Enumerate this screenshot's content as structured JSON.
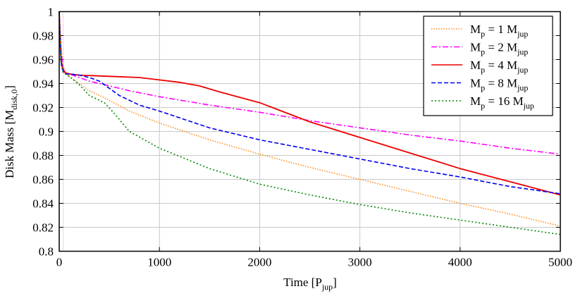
{
  "chart_data": {
    "type": "line",
    "xlabel": {
      "main": "Time [P",
      "sub": "jup",
      "end": "]"
    },
    "ylabel": {
      "main": "Disk Mass [M",
      "sub": "disk,0",
      "end": "]"
    },
    "xlim": [
      0,
      5000
    ],
    "ylim": [
      0.8,
      1.0
    ],
    "xticks": [
      0,
      1000,
      2000,
      3000,
      4000,
      5000
    ],
    "yticks": [
      0.8,
      0.82,
      0.84,
      0.86,
      0.88,
      0.9,
      0.92,
      0.94,
      0.96,
      0.98,
      1
    ],
    "ytick_labels": [
      "0.8",
      "0.82",
      "0.84",
      "0.86",
      "0.88",
      "0.9",
      "0.92",
      "0.94",
      "0.96",
      "0.98",
      "1"
    ],
    "grid": true,
    "legend_placement": "top-right",
    "vline_x": 40,
    "series": [
      {
        "name": {
          "a": "M",
          "b": "p",
          "c": " = 1 M",
          "d": "jup"
        },
        "color": "#ff8c1a",
        "dash": "1.5,2",
        "x": [
          0,
          10,
          20,
          40,
          60,
          100,
          200,
          300,
          500,
          700,
          1000,
          1500,
          2000,
          2500,
          3000,
          3500,
          4000,
          4500,
          5000
        ],
        "y": [
          1.0,
          0.985,
          0.97,
          0.955,
          0.95,
          0.946,
          0.94,
          0.934,
          0.926,
          0.917,
          0.907,
          0.893,
          0.881,
          0.87,
          0.86,
          0.85,
          0.84,
          0.831,
          0.821
        ]
      },
      {
        "name": {
          "a": "M",
          "b": "p",
          "c": " = 2 M",
          "d": "jup"
        },
        "color": "#ff00ff",
        "dash": "8,3,2,3",
        "x": [
          0,
          10,
          20,
          40,
          60,
          100,
          200,
          300,
          500,
          700,
          1000,
          1500,
          2000,
          2500,
          3000,
          3500,
          4000,
          4500,
          5000
        ],
        "y": [
          1.0,
          0.98,
          0.965,
          0.952,
          0.949,
          0.948,
          0.945,
          0.942,
          0.938,
          0.934,
          0.929,
          0.922,
          0.916,
          0.909,
          0.903,
          0.897,
          0.892,
          0.886,
          0.881
        ]
      },
      {
        "name": {
          "a": "M",
          "b": "p",
          "c": " = 4 M",
          "d": "jup"
        },
        "color": "#ee0000",
        "dash": "",
        "x": [
          0,
          10,
          20,
          40,
          60,
          100,
          200,
          500,
          800,
          1000,
          1200,
          1400,
          1600,
          2000,
          2500,
          3000,
          3500,
          4000,
          4500,
          5000
        ],
        "y": [
          1.0,
          0.975,
          0.958,
          0.951,
          0.949,
          0.948,
          0.947,
          0.946,
          0.945,
          0.943,
          0.941,
          0.938,
          0.933,
          0.924,
          0.908,
          0.895,
          0.882,
          0.869,
          0.858,
          0.847
        ]
      },
      {
        "name": {
          "a": "M",
          "b": "p",
          "c": " = 8 M",
          "d": "jup"
        },
        "color": "#0000ee",
        "dash": "6,3",
        "x": [
          0,
          10,
          20,
          40,
          60,
          100,
          200,
          300,
          400,
          500,
          600,
          800,
          1000,
          1500,
          2000,
          2500,
          3000,
          3500,
          4000,
          4500,
          5000
        ],
        "y": [
          1.0,
          0.975,
          0.958,
          0.95,
          0.948,
          0.948,
          0.947,
          0.945,
          0.942,
          0.936,
          0.93,
          0.922,
          0.917,
          0.903,
          0.893,
          0.885,
          0.877,
          0.869,
          0.862,
          0.854,
          0.848
        ]
      },
      {
        "name": {
          "a": "M",
          "b": "p",
          "c": " = 16 M",
          "d": "jup"
        },
        "color": "#008800",
        "dash": "2,3",
        "x": [
          0,
          10,
          20,
          40,
          60,
          100,
          200,
          300,
          450,
          550,
          700,
          1000,
          1500,
          2000,
          2500,
          3000,
          3500,
          4000,
          4500,
          5000
        ],
        "y": [
          1.0,
          0.97,
          0.955,
          0.949,
          0.948,
          0.946,
          0.939,
          0.93,
          0.924,
          0.915,
          0.9,
          0.886,
          0.869,
          0.856,
          0.847,
          0.839,
          0.832,
          0.826,
          0.82,
          0.814
        ]
      }
    ]
  }
}
